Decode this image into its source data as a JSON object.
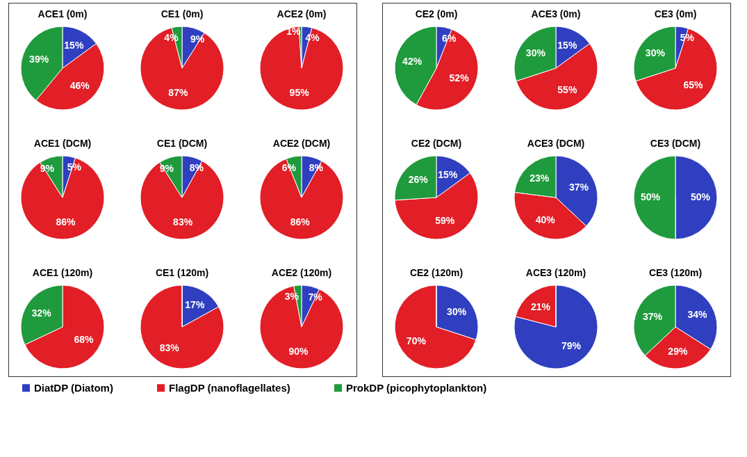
{
  "chart_data": [
    {
      "type": "pie",
      "title": "ACE1 (0m)",
      "categories": [
        "DiatDP (Diatom)",
        "FlagDP (nanoflagellates)",
        "ProkDP (picophytoplankton)"
      ],
      "values": [
        15,
        46,
        39
      ],
      "value_labels": [
        "15%",
        "46%",
        "39%"
      ],
      "colors": [
        "#2f3fc0",
        "#e21e26",
        "#1f9a3c"
      ],
      "legend": "bottom"
    },
    {
      "type": "pie",
      "title": "CE1 (0m)",
      "categories": [
        null,
        null,
        null
      ],
      "values": [
        9,
        87,
        4
      ],
      "value_labels": [
        "9%",
        "87%",
        "4%"
      ],
      "colors": [
        "#2f3fc0",
        "#e21e26",
        "#1f9a3c"
      ]
    },
    {
      "type": "pie",
      "title": "ACE2 (0m)",
      "categories": [
        null,
        null,
        null
      ],
      "values": [
        4,
        95,
        1
      ],
      "value_labels": [
        "4%",
        "95%",
        "1%"
      ],
      "colors": [
        "#2f3fc0",
        "#e21e26",
        "#1f9a3c"
      ]
    },
    {
      "type": "pie",
      "title": "ACE1 (DCM)",
      "categories": [
        null,
        null,
        null
      ],
      "values": [
        5,
        86,
        9
      ],
      "value_labels": [
        "5%",
        "86%",
        "9%"
      ],
      "colors": [
        "#2f3fc0",
        "#e21e26",
        "#1f9a3c"
      ]
    },
    {
      "type": "pie",
      "title": "CE1 (DCM)",
      "categories": [
        null,
        null,
        null
      ],
      "values": [
        8,
        83,
        9
      ],
      "value_labels": [
        "8%",
        "83%",
        "9%"
      ],
      "colors": [
        "#2f3fc0",
        "#e21e26",
        "#1f9a3c"
      ]
    },
    {
      "type": "pie",
      "title": "ACE2 (DCM)",
      "categories": [
        null,
        null,
        null
      ],
      "values": [
        8,
        86,
        6
      ],
      "value_labels": [
        "8%",
        "86%",
        "6%"
      ],
      "colors": [
        "#2f3fc0",
        "#e21e26",
        "#1f9a3c"
      ]
    },
    {
      "type": "pie",
      "title": "ACE1 (120m)",
      "categories": [
        null,
        null,
        null
      ],
      "values": [
        0,
        68,
        32
      ],
      "value_labels": [
        null,
        "68%",
        "32%"
      ],
      "colors": [
        "#2f3fc0",
        "#e21e26",
        "#1f9a3c"
      ]
    },
    {
      "type": "pie",
      "title": "CE1 (120m)",
      "categories": [
        null,
        null,
        null
      ],
      "values": [
        17,
        83,
        0
      ],
      "value_labels": [
        "17%",
        "83%",
        null
      ],
      "colors": [
        "#2f3fc0",
        "#e21e26",
        "#1f9a3c"
      ]
    },
    {
      "type": "pie",
      "title": "ACE2 (120m)",
      "categories": [
        null,
        null,
        null
      ],
      "values": [
        7,
        90,
        3
      ],
      "value_labels": [
        "7%",
        "90%",
        "3%"
      ],
      "colors": [
        "#2f3fc0",
        "#e21e26",
        "#1f9a3c"
      ]
    },
    {
      "type": "pie",
      "title": "CE2 (0m)",
      "categories": [
        null,
        null,
        null
      ],
      "values": [
        6,
        52,
        42
      ],
      "value_labels": [
        "6%",
        "52%",
        "42%"
      ],
      "colors": [
        "#2f3fc0",
        "#e21e26",
        "#1f9a3c"
      ]
    },
    {
      "type": "pie",
      "title": "ACE3 (0m)",
      "categories": [
        null,
        null,
        null
      ],
      "values": [
        15,
        55,
        30
      ],
      "value_labels": [
        "15%",
        "55%",
        "30%"
      ],
      "colors": [
        "#2f3fc0",
        "#e21e26",
        "#1f9a3c"
      ]
    },
    {
      "type": "pie",
      "title": "CE3 (0m)",
      "categories": [
        null,
        null,
        null
      ],
      "values": [
        5,
        65,
        30
      ],
      "value_labels": [
        "5%",
        "65%",
        "30%"
      ],
      "colors": [
        "#2f3fc0",
        "#e21e26",
        "#1f9a3c"
      ]
    },
    {
      "type": "pie",
      "title": "CE2 (DCM)",
      "categories": [
        null,
        null,
        null
      ],
      "values": [
        15,
        59,
        26
      ],
      "value_labels": [
        "15%",
        "59%",
        "26%"
      ],
      "colors": [
        "#2f3fc0",
        "#e21e26",
        "#1f9a3c"
      ]
    },
    {
      "type": "pie",
      "title": "ACE3 (DCM)",
      "categories": [
        null,
        null,
        null
      ],
      "values": [
        37,
        40,
        23
      ],
      "value_labels": [
        "37%",
        "40%",
        "23%"
      ],
      "colors": [
        "#2f3fc0",
        "#e21e26",
        "#1f9a3c"
      ]
    },
    {
      "type": "pie",
      "title": "CE3 (DCM)",
      "categories": [
        null,
        null,
        null
      ],
      "values": [
        50,
        0,
        50
      ],
      "value_labels": [
        "50%",
        null,
        "50%"
      ],
      "colors": [
        "#2f3fc0",
        "#e21e26",
        "#1f9a3c"
      ]
    },
    {
      "type": "pie",
      "title": "CE2 (120m)",
      "categories": [
        null,
        null,
        null
      ],
      "values": [
        30,
        70,
        0
      ],
      "value_labels": [
        "30%",
        "70%",
        null
      ],
      "colors": [
        "#2f3fc0",
        "#e21e26",
        "#1f9a3c"
      ]
    },
    {
      "type": "pie",
      "title": "ACE3 (120m)",
      "categories": [
        null,
        null,
        null
      ],
      "values": [
        79,
        21,
        0
      ],
      "value_labels": [
        "79%",
        "21%",
        null
      ],
      "colors": [
        "#2f3fc0",
        "#e21e26",
        "#1f9a3c"
      ]
    },
    {
      "type": "pie",
      "title": "CE3 (120m)",
      "categories": [
        null,
        null,
        null
      ],
      "values": [
        34,
        29,
        37
      ],
      "value_labels": [
        "34%",
        "29%",
        "37%"
      ],
      "colors": [
        "#2f3fc0",
        "#e21e26",
        "#1f9a3c"
      ]
    }
  ]
}
